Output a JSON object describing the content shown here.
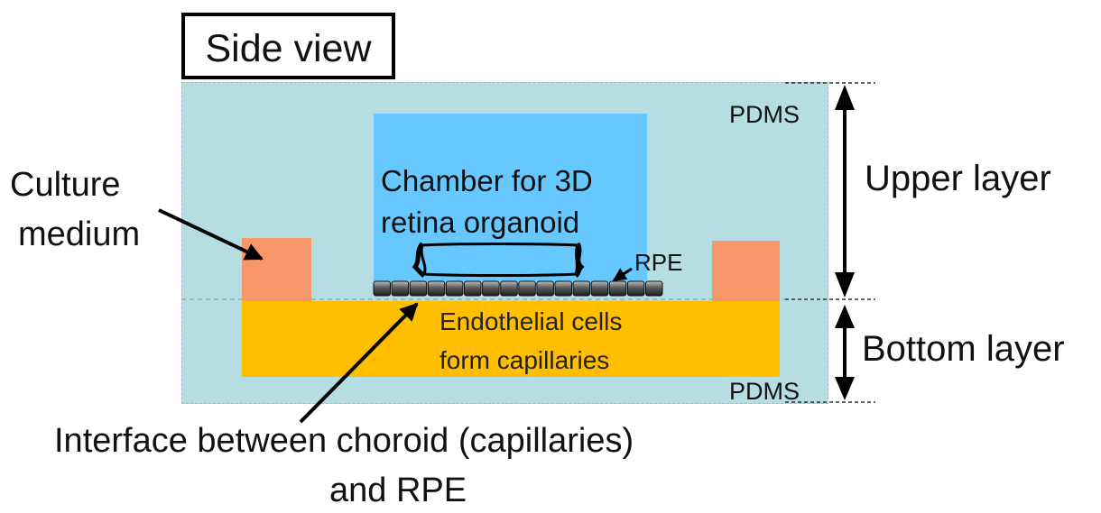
{
  "title": "Side view",
  "chamber": {
    "line1": "Chamber for 3D",
    "line2": "retina organoid"
  },
  "rpe_label": "RPE",
  "endothelial": {
    "line1": "Endothelial cells",
    "line2": "form capillaries"
  },
  "pdms_top": "PDMS",
  "pdms_bottom": "PDMS",
  "culture_medium": {
    "line1": "Culture",
    "line2": "medium"
  },
  "upper_layer": "Upper layer",
  "bottom_layer": "Bottom layer",
  "interface": {
    "line1": "Interface between choroid (capillaries)",
    "line2": "and RPE"
  },
  "colors": {
    "pdms": "#B6DDE2",
    "chamber": "#66C8FF",
    "culture_medium": "#F79769",
    "endothelial": "#FFBF00",
    "rpe_cell": "#555555"
  }
}
